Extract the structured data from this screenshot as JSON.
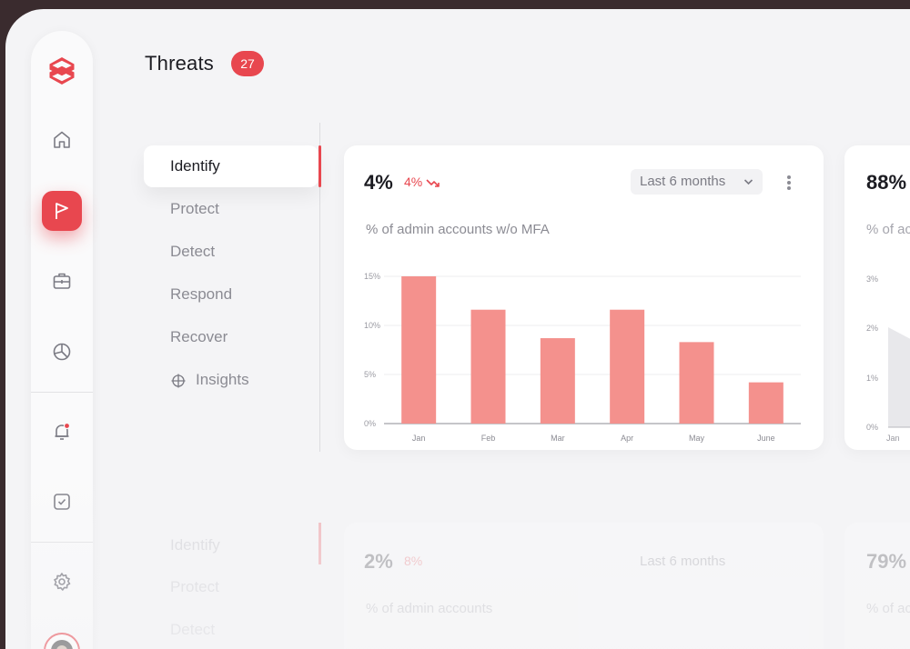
{
  "header": {
    "title": "Threats",
    "count": "27"
  },
  "nav": {
    "items": [
      {
        "label": "Identify",
        "active": true
      },
      {
        "label": "Protect"
      },
      {
        "label": "Detect"
      },
      {
        "label": "Respond"
      },
      {
        "label": "Recover"
      },
      {
        "label": "Insights",
        "icon": "crosshair-icon"
      }
    ]
  },
  "sidebar": {
    "icons": [
      "logo-icon",
      "home-icon",
      "flag-icon",
      "briefcase-icon",
      "pie-chart-icon",
      "bell-icon",
      "checkbox-icon",
      "settings-icon",
      "avatar"
    ]
  },
  "card_main": {
    "value": "4%",
    "delta": "4%",
    "period": "Last 6 months",
    "subtitle": "% of admin accounts w/o MFA"
  },
  "card_side": {
    "value": "88%",
    "subtitle": "% of ac",
    "y_ticks": [
      "3%",
      "2%",
      "1%",
      "0%"
    ],
    "first_category": "Jan"
  },
  "chart_data": {
    "type": "bar",
    "categories": [
      "Jan",
      "Feb",
      "Mar",
      "Apr",
      "May",
      "June"
    ],
    "values": [
      15,
      11.6,
      8.7,
      11.6,
      8.3,
      4.2
    ],
    "y_ticks": [
      "15%",
      "10%",
      "5%",
      "0%"
    ],
    "ylim": [
      0,
      15
    ],
    "grid": true,
    "color": "#f4918d"
  },
  "reflection": {
    "nav": [
      "Identify",
      "Protect",
      "Detect"
    ],
    "value": "2%",
    "delta": "8%",
    "period": "Last 6 months",
    "subtitle": "% of admin accounts",
    "side_value": "79%",
    "side_subtitle": "% of ac"
  },
  "colors": {
    "accent": "#e8474f",
    "bar": "#f4918d",
    "bg": "#f4f4f6"
  }
}
